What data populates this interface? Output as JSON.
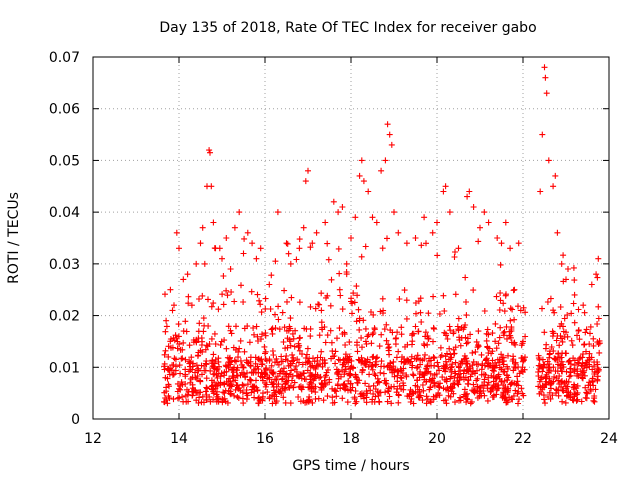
{
  "chart_data": {
    "type": "scatter",
    "title": "Day 135 of 2018, Rate Of TEC Index for receiver gabo",
    "xlabel": "GPS time / hours",
    "ylabel": "ROTI / TECUs",
    "xlim": [
      12,
      24
    ],
    "ylim": [
      0,
      0.07
    ],
    "x_ticks": [
      12,
      14,
      16,
      18,
      20,
      22,
      24
    ],
    "x_tick_labels": [
      "12",
      "14",
      "16",
      "18",
      "20",
      "22",
      "24"
    ],
    "y_ticks": [
      0,
      0.01,
      0.02,
      0.03,
      0.04,
      0.05,
      0.06,
      0.07
    ],
    "y_tick_labels": [
      "0",
      "0.01",
      "0.02",
      "0.03",
      "0.04",
      "0.05",
      "0.06",
      "0.07"
    ],
    "grid": true,
    "marker": "+",
    "color": "#ff0000",
    "series": [
      {
        "name": "ROTI",
        "data_description": "dense scatter of ROTI samples from ~13.7 h to ~22.0 h and ~22.4 h to ~23.8 h",
        "points": [
          [
            13.7,
            0.019
          ],
          [
            13.75,
            0.012
          ],
          [
            13.8,
            0.025
          ],
          [
            13.85,
            0.021
          ],
          [
            13.95,
            0.036
          ],
          [
            14.0,
            0.033
          ],
          [
            14.1,
            0.027
          ],
          [
            14.2,
            0.028
          ],
          [
            14.3,
            0.022
          ],
          [
            14.4,
            0.03
          ],
          [
            14.5,
            0.034
          ],
          [
            14.55,
            0.037
          ],
          [
            14.6,
            0.03
          ],
          [
            14.65,
            0.045
          ],
          [
            14.7,
            0.052
          ],
          [
            14.72,
            0.0515
          ],
          [
            14.75,
            0.045
          ],
          [
            14.8,
            0.038
          ],
          [
            14.85,
            0.033
          ],
          [
            14.95,
            0.033
          ],
          [
            15.0,
            0.031
          ],
          [
            15.1,
            0.035
          ],
          [
            15.2,
            0.029
          ],
          [
            15.3,
            0.037
          ],
          [
            15.4,
            0.04
          ],
          [
            15.5,
            0.032
          ],
          [
            15.6,
            0.036
          ],
          [
            15.7,
            0.034
          ],
          [
            15.8,
            0.031
          ],
          [
            15.9,
            0.033
          ],
          [
            16.1,
            0.026
          ],
          [
            16.3,
            0.04
          ],
          [
            16.5,
            0.034
          ],
          [
            16.6,
            0.03
          ],
          [
            16.8,
            0.033
          ],
          [
            16.9,
            0.037
          ],
          [
            16.95,
            0.046
          ],
          [
            17.0,
            0.048
          ],
          [
            17.1,
            0.034
          ],
          [
            17.2,
            0.036
          ],
          [
            17.4,
            0.038
          ],
          [
            17.6,
            0.042
          ],
          [
            17.7,
            0.04
          ],
          [
            17.8,
            0.041
          ],
          [
            17.9,
            0.03
          ],
          [
            18.0,
            0.035
          ],
          [
            18.1,
            0.039
          ],
          [
            18.2,
            0.047
          ],
          [
            18.25,
            0.05
          ],
          [
            18.3,
            0.046
          ],
          [
            18.4,
            0.044
          ],
          [
            18.5,
            0.039
          ],
          [
            18.6,
            0.038
          ],
          [
            18.7,
            0.048
          ],
          [
            18.8,
            0.05
          ],
          [
            18.85,
            0.057
          ],
          [
            18.9,
            0.055
          ],
          [
            18.95,
            0.053
          ],
          [
            19.0,
            0.04
          ],
          [
            19.1,
            0.036
          ],
          [
            19.3,
            0.034
          ],
          [
            19.5,
            0.035
          ],
          [
            19.7,
            0.039
          ],
          [
            19.9,
            0.036
          ],
          [
            20.0,
            0.038
          ],
          [
            20.15,
            0.044
          ],
          [
            20.2,
            0.045
          ],
          [
            20.3,
            0.04
          ],
          [
            20.5,
            0.033
          ],
          [
            20.7,
            0.043
          ],
          [
            20.75,
            0.044
          ],
          [
            20.85,
            0.041
          ],
          [
            21.0,
            0.037
          ],
          [
            21.1,
            0.04
          ],
          [
            21.2,
            0.038
          ],
          [
            21.4,
            0.035
          ],
          [
            21.5,
            0.034
          ],
          [
            21.6,
            0.038
          ],
          [
            21.7,
            0.033
          ],
          [
            21.8,
            0.025
          ],
          [
            21.9,
            0.034
          ],
          [
            21.95,
            0.021
          ],
          [
            22.0,
            0.015
          ],
          [
            22.4,
            0.044
          ],
          [
            22.45,
            0.055
          ],
          [
            22.5,
            0.068
          ],
          [
            22.52,
            0.066
          ],
          [
            22.55,
            0.063
          ],
          [
            22.6,
            0.05
          ],
          [
            22.7,
            0.045
          ],
          [
            22.75,
            0.047
          ],
          [
            22.8,
            0.036
          ],
          [
            22.9,
            0.03
          ],
          [
            23.0,
            0.027
          ],
          [
            23.2,
            0.024
          ],
          [
            23.4,
            0.022
          ],
          [
            23.6,
            0.026
          ],
          [
            23.7,
            0.028
          ],
          [
            23.75,
            0.031
          ]
        ]
      }
    ]
  }
}
